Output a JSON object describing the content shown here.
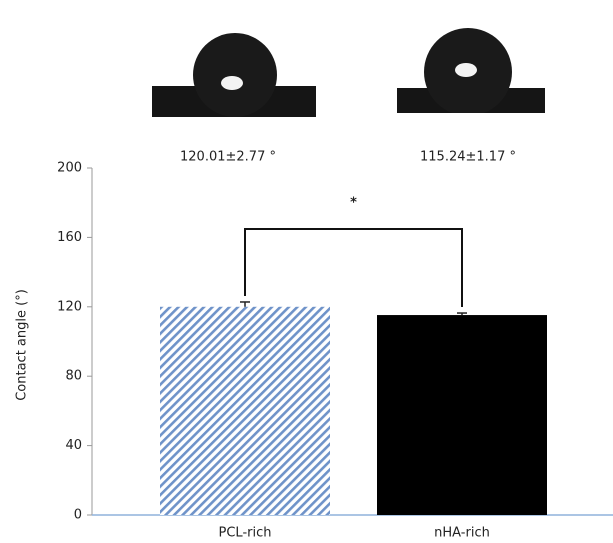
{
  "chart_data": {
    "type": "bar",
    "categories": [
      "PCL-rich",
      "nHA-rich"
    ],
    "values": [
      120.01,
      115.24
    ],
    "errors": [
      2.77,
      1.17
    ],
    "value_labels": [
      "120.01±2.77 °",
      "115.24±1.17 °"
    ],
    "colors": [
      "#6f93c9",
      "#000000"
    ],
    "hatched": [
      true,
      false
    ],
    "y_label": "Contact angle (°)",
    "annotation": "*",
    "ylim": [
      0,
      200
    ],
    "yticks": [
      0,
      40,
      80,
      120,
      160,
      200
    ]
  }
}
